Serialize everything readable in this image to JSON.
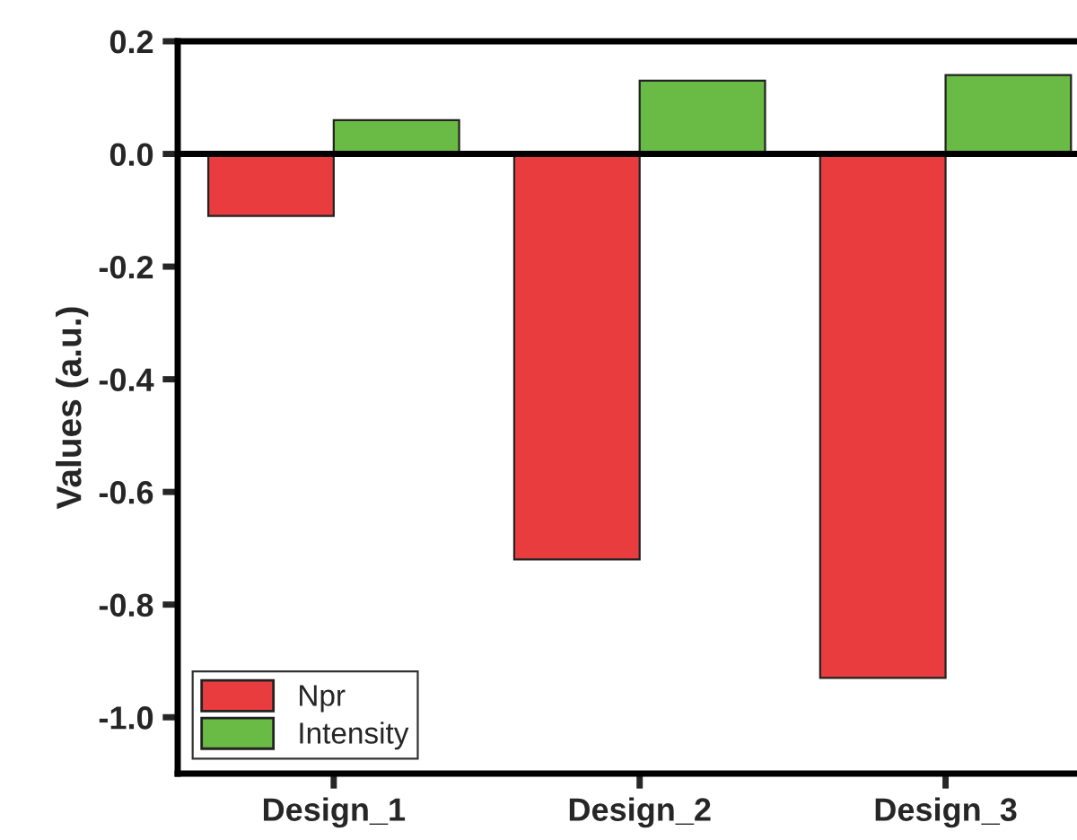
{
  "chart_data": {
    "type": "bar",
    "ylabel": "Values (a.u.)",
    "categories": [
      "Design_1",
      "Design_2",
      "Design_3"
    ],
    "series": [
      {
        "name": "Npr",
        "color": "#e83c3f",
        "values": [
          -0.11,
          -0.72,
          -0.93
        ]
      },
      {
        "name": "Intensity",
        "color": "#6abb45",
        "values": [
          0.06,
          0.13,
          0.14
        ]
      }
    ],
    "ylim": [
      -1.1,
      0.2
    ],
    "yticks": [
      {
        "value": -1.0,
        "label": "-1.0"
      },
      {
        "value": -0.8,
        "label": "-0.8"
      },
      {
        "value": -0.6,
        "label": "-0.6"
      },
      {
        "value": -0.4,
        "label": "-0.4"
      },
      {
        "value": -0.2,
        "label": "-0.2"
      },
      {
        "value": 0.0,
        "label": "0.0"
      },
      {
        "value": 0.2,
        "label": "0.2"
      }
    ],
    "legend": "bottom left"
  }
}
